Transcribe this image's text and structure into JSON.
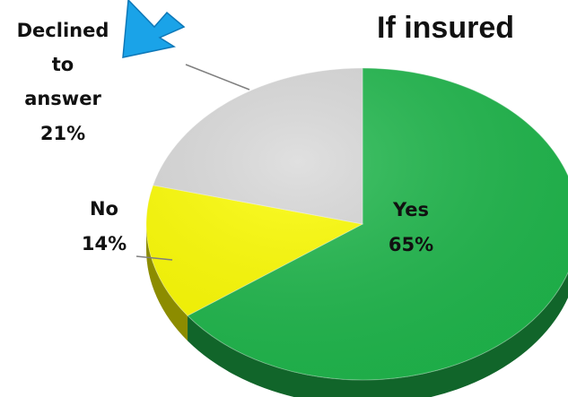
{
  "chart_data": {
    "type": "pie",
    "title": "If insured",
    "slices": [
      {
        "label": "Yes",
        "value": 65,
        "display": "65%",
        "color": "#1fb84c"
      },
      {
        "label": "No",
        "value": 14,
        "display": "14%",
        "color": "#ffff00"
      },
      {
        "label_lines": [
          "Declined",
          "to",
          "answer"
        ],
        "value": 21,
        "display": "21%",
        "color": "#d9d9d9"
      }
    ],
    "style": "3d-tilted",
    "legend": "none",
    "annotation": {
      "type": "arrow",
      "color": "#1aa3e8",
      "points_to": "Declined to answer",
      "icon": "arrow-down-left-icon"
    }
  }
}
